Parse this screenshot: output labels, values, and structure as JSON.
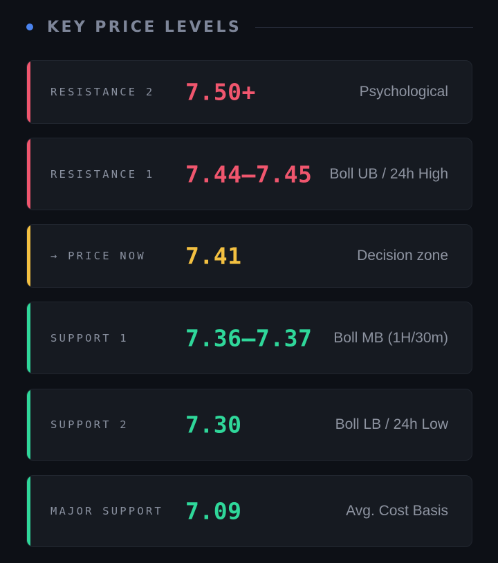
{
  "header": {
    "title": "KEY PRICE LEVELS"
  },
  "colors": {
    "resistance": "#f0566e",
    "current": "#f3c041",
    "support": "#2fd79a",
    "accent_dot": "#4a83ee"
  },
  "levels": [
    {
      "label": "RESISTANCE 2",
      "price": "7.50+",
      "note": "Psychological",
      "kind": "resistance"
    },
    {
      "label": "RESISTANCE 1",
      "price": "7.44–7.45",
      "note": "Boll UB / 24h High",
      "kind": "resistance"
    },
    {
      "label": "→ PRICE NOW",
      "price": "7.41",
      "note": "Decision zone",
      "kind": "current"
    },
    {
      "label": "SUPPORT 1",
      "price": "7.36–7.37",
      "note": "Boll MB (1H/30m)",
      "kind": "support"
    },
    {
      "label": "SUPPORT 2",
      "price": "7.30",
      "note": "Boll LB / 24h Low",
      "kind": "support"
    },
    {
      "label": "MAJOR SUPPORT",
      "price": "7.09",
      "note": "Avg. Cost Basis",
      "kind": "support"
    }
  ]
}
